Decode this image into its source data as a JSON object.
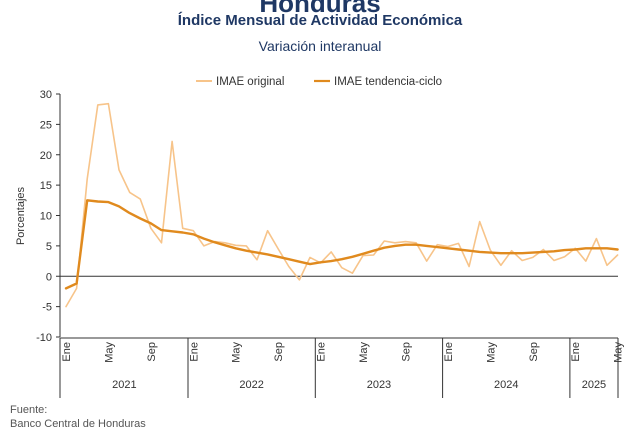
{
  "header": {
    "country": "Honduras",
    "title": "Índice Mensual de Actividad Económica",
    "subtitle": "Variación interanual"
  },
  "footer": {
    "source_label": "Fuente:",
    "source_text": "Banco Central de Honduras"
  },
  "colors": {
    "original": "#f7c48a",
    "trend": "#e08a1e",
    "axis": "#333333",
    "title": "#1f3864"
  },
  "chart_data": {
    "type": "line",
    "title": "Índice Mensual de Actividad Económica",
    "subtitle": "Variación interanual",
    "ylabel": "Porcentajes",
    "xlabel": "",
    "ylim": [
      -10,
      30
    ],
    "yticks": [
      -10,
      -5,
      0,
      5,
      10,
      15,
      20,
      25,
      30
    ],
    "grid": false,
    "legend": "top-center",
    "x": [
      "2021-01",
      "2021-02",
      "2021-03",
      "2021-04",
      "2021-05",
      "2021-06",
      "2021-07",
      "2021-08",
      "2021-09",
      "2021-10",
      "2021-11",
      "2021-12",
      "2022-01",
      "2022-02",
      "2022-03",
      "2022-04",
      "2022-05",
      "2022-06",
      "2022-07",
      "2022-08",
      "2022-09",
      "2022-10",
      "2022-11",
      "2022-12",
      "2023-01",
      "2023-02",
      "2023-03",
      "2023-04",
      "2023-05",
      "2023-06",
      "2023-07",
      "2023-08",
      "2023-09",
      "2023-10",
      "2023-11",
      "2023-12",
      "2024-01",
      "2024-02",
      "2024-03",
      "2024-04",
      "2024-05",
      "2024-06",
      "2024-07",
      "2024-08",
      "2024-09",
      "2024-10",
      "2024-11",
      "2024-12",
      "2025-01",
      "2025-02",
      "2025-03",
      "2025-04",
      "2025-05"
    ],
    "tick_labels": [
      {
        "label": "Ene",
        "index": 0
      },
      {
        "label": "May",
        "index": 4
      },
      {
        "label": "Sep",
        "index": 8
      },
      {
        "label": "Ene",
        "index": 12
      },
      {
        "label": "May",
        "index": 16
      },
      {
        "label": "Sep",
        "index": 20
      },
      {
        "label": "Ene",
        "index": 24
      },
      {
        "label": "May",
        "index": 28
      },
      {
        "label": "Sep",
        "index": 32
      },
      {
        "label": "Ene",
        "index": 36
      },
      {
        "label": "May",
        "index": 40
      },
      {
        "label": "Sep",
        "index": 44
      },
      {
        "label": "Ene",
        "index": 48
      },
      {
        "label": "May",
        "index": 52
      }
    ],
    "years": [
      {
        "label": "2021",
        "start": 0,
        "end": 11
      },
      {
        "label": "2022",
        "start": 12,
        "end": 23
      },
      {
        "label": "2023",
        "start": 24,
        "end": 35
      },
      {
        "label": "2024",
        "start": 36,
        "end": 47
      },
      {
        "label": "2025",
        "start": 48,
        "end": 52
      }
    ],
    "series": [
      {
        "name": "IMAE original",
        "values": [
          -5.0,
          -2.0,
          16.0,
          28.2,
          28.4,
          17.5,
          13.8,
          12.7,
          7.9,
          5.5,
          22.2,
          7.9,
          7.5,
          5.0,
          5.7,
          5.5,
          5.1,
          5.0,
          2.7,
          7.5,
          4.5,
          1.6,
          -0.6,
          3.1,
          2.2,
          4.0,
          1.4,
          0.5,
          3.4,
          3.5,
          5.8,
          5.5,
          5.7,
          5.5,
          2.5,
          5.2,
          4.9,
          5.4,
          1.6,
          9.0,
          4.3,
          1.8,
          4.2,
          2.6,
          3.1,
          4.4,
          2.6,
          3.2,
          4.6,
          2.5,
          6.2,
          1.8,
          3.5
        ]
      },
      {
        "name": "IMAE tendencia-ciclo",
        "values": [
          -2.0,
          -1.2,
          12.5,
          12.3,
          12.2,
          11.5,
          10.4,
          9.5,
          8.7,
          7.6,
          7.4,
          7.2,
          6.9,
          6.2,
          5.6,
          5.1,
          4.6,
          4.2,
          3.9,
          3.6,
          3.2,
          2.8,
          2.4,
          2.0,
          2.3,
          2.5,
          2.8,
          3.2,
          3.7,
          4.2,
          4.7,
          5.0,
          5.2,
          5.2,
          5.0,
          4.8,
          4.6,
          4.4,
          4.2,
          4.0,
          3.9,
          3.8,
          3.8,
          3.8,
          3.9,
          4.0,
          4.1,
          4.3,
          4.4,
          4.6,
          4.6,
          4.6,
          4.4
        ]
      }
    ]
  }
}
